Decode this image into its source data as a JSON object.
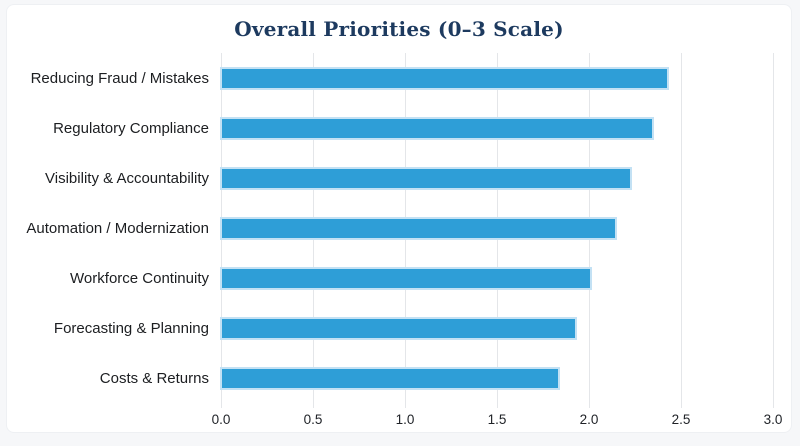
{
  "page": {
    "title": "Overall Priorities (0–3 Scale)"
  },
  "colors": {
    "page_bg": "#f6f7f9",
    "card_bg": "#ffffff",
    "title": "#1d3a5f",
    "bar": "#2e9ed7",
    "bar_border": "#c3e1f4",
    "grid": "#e4e6e9",
    "label": "#1c1e21"
  },
  "chart_data": {
    "type": "bar",
    "orientation": "horizontal",
    "title": "Overall Priorities (0–3 Scale)",
    "categories": [
      "Reducing Fraud / Mistakes",
      "Regulatory Compliance",
      "Visibility & Accountability",
      "Automation / Modernization",
      "Workforce Continuity",
      "Forecasting & Planning",
      "Costs & Returns"
    ],
    "values": [
      2.44,
      2.36,
      2.24,
      2.16,
      2.02,
      1.94,
      1.85
    ],
    "xlabel": "",
    "ylabel": "",
    "xlim": [
      0,
      3
    ],
    "xtick_labels": [
      "0.0",
      "0.5",
      "1.0",
      "1.5",
      "2.0",
      "2.5",
      "3.0"
    ],
    "grid": "vertical",
    "legend": "none"
  }
}
